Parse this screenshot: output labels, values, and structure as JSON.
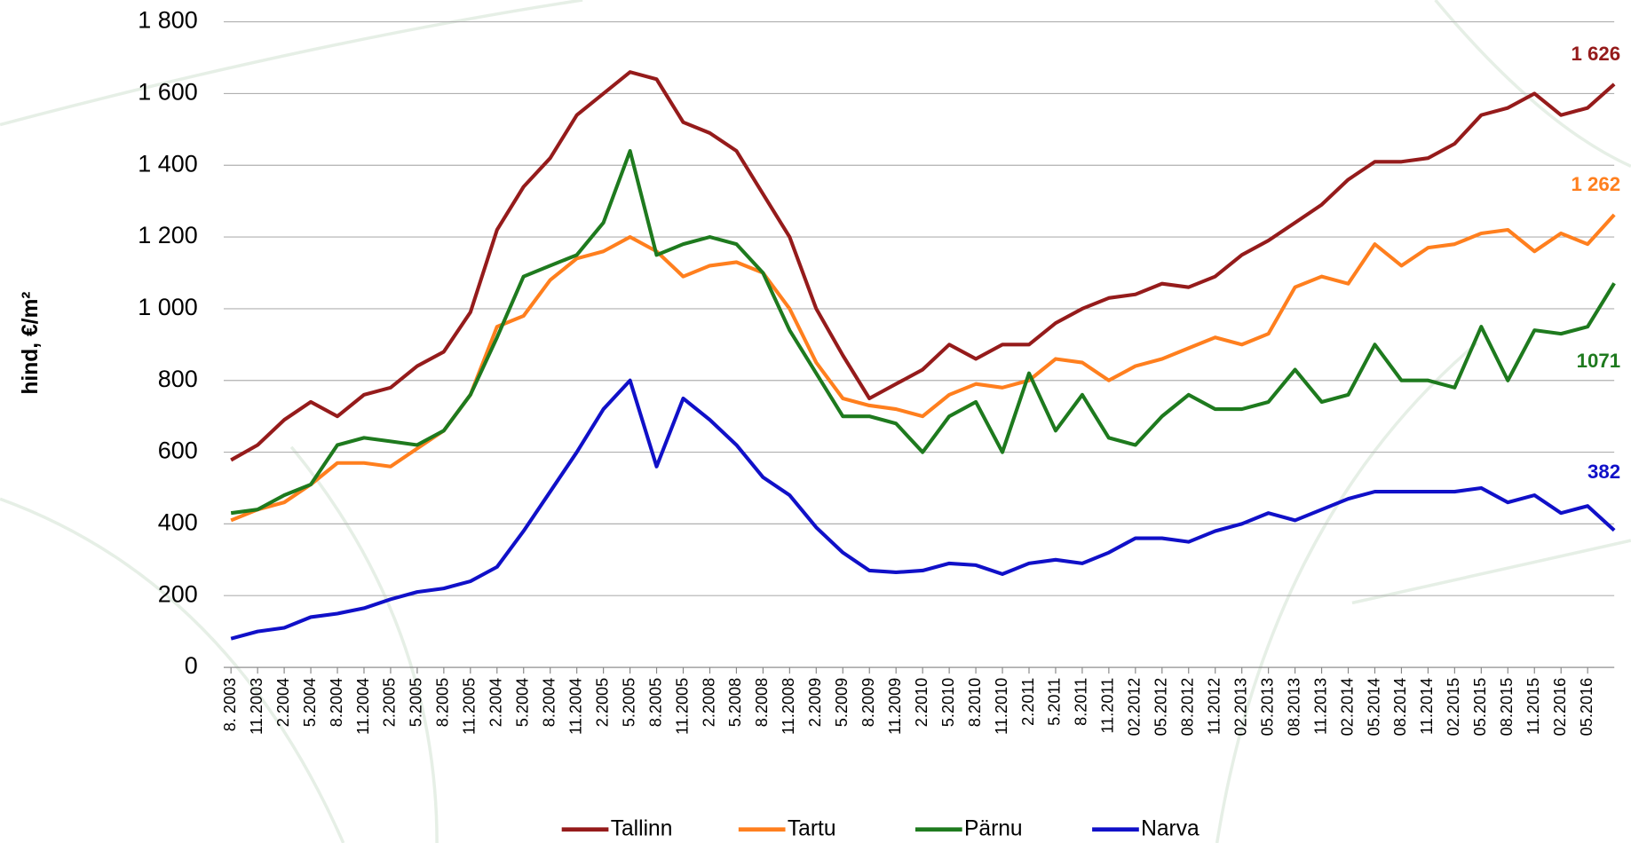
{
  "chart_data": {
    "type": "line",
    "y_label": "hind, €/m²",
    "categories": [
      "8. 2003",
      "11.2003",
      "2.2004",
      "5.2004",
      "8.2004",
      "11.2004",
      "2.2005",
      "5.2005",
      "8.2005",
      "11.2005",
      "2.2004",
      "5.2004",
      "8.2004",
      "11.2004",
      "2.2005",
      "5.2005",
      "8.2005",
      "11.2005",
      "2.2008",
      "5.2008",
      "8.2008",
      "11.2008",
      "2.2009",
      "5.2009",
      "8.2009",
      "11.2009",
      "2.2010",
      "5.2010",
      "8.2010",
      "11.2010",
      "2.2011",
      "5.2011",
      "8.2011",
      "11.2011",
      "02.2012",
      "05.2012",
      "08.2012",
      "11.2012",
      "02.2013",
      "05.2013",
      "08.2013",
      "11.2013",
      "02.2014",
      "05.2014",
      "08.2014",
      "11.2014",
      "02.2015",
      "05.2015",
      "08.2015",
      "11.2015",
      "02.2016",
      "05.2016",
      null
    ],
    "ylim": [
      0,
      1800
    ],
    "yticks": [
      0,
      200,
      400,
      600,
      800,
      {
        "value": 1000,
        "label": "1 000"
      },
      {
        "value": 1200,
        "label": "1 200"
      },
      {
        "value": 1400,
        "label": "1 400"
      },
      {
        "value": 1600,
        "label": "1 600"
      },
      {
        "value": 1800,
        "label": "1 800"
      }
    ],
    "grid": true,
    "legend": "bottom",
    "series": [
      {
        "name": "Tallinn",
        "color": "#951b1b",
        "values": [
          578,
          620,
          690,
          740,
          700,
          760,
          780,
          840,
          880,
          990,
          1220,
          1340,
          1420,
          1540,
          1600,
          1660,
          1640,
          1520,
          1490,
          1440,
          1320,
          1200,
          1000,
          870,
          750,
          790,
          830,
          900,
          860,
          900,
          900,
          960,
          1000,
          1030,
          1040,
          1070,
          1060,
          1090,
          1150,
          1190,
          1240,
          1290,
          1360,
          1410,
          1410,
          1420,
          1460,
          1540,
          1560,
          1600,
          1540,
          1560,
          1626
        ],
        "value_labels": [
          null,
          null,
          null,
          null,
          null,
          null,
          null,
          null,
          null,
          null,
          null,
          null,
          null,
          null,
          null,
          null,
          null,
          null,
          null,
          null,
          null,
          null,
          null,
          null,
          null,
          null,
          null,
          null,
          null,
          null,
          null,
          null,
          null,
          null,
          null,
          null,
          null,
          null,
          null,
          null,
          null,
          null,
          null,
          null,
          null,
          null,
          null,
          null,
          null,
          null,
          null,
          null,
          "1 626"
        ]
      },
      {
        "name": "Tartu",
        "color": "#ff7f1e",
        "values": [
          410,
          440,
          460,
          510,
          570,
          570,
          560,
          610,
          660,
          760,
          950,
          980,
          1080,
          1140,
          1160,
          1200,
          1160,
          1090,
          1120,
          1130,
          1100,
          1000,
          850,
          750,
          730,
          720,
          700,
          760,
          790,
          780,
          800,
          860,
          850,
          800,
          840,
          860,
          890,
          920,
          900,
          930,
          1060,
          1090,
          1070,
          1180,
          1120,
          1170,
          1180,
          1210,
          1220,
          1160,
          1210,
          1180,
          1262
        ],
        "value_labels": [
          null,
          null,
          null,
          null,
          null,
          null,
          null,
          null,
          null,
          null,
          null,
          null,
          null,
          null,
          null,
          null,
          null,
          null,
          null,
          null,
          null,
          null,
          null,
          null,
          null,
          null,
          null,
          null,
          null,
          null,
          null,
          null,
          null,
          null,
          null,
          null,
          null,
          null,
          null,
          null,
          null,
          null,
          null,
          null,
          null,
          null,
          null,
          null,
          null,
          null,
          null,
          null,
          "1 262"
        ]
      },
      {
        "name": "Pärnu",
        "color": "#1e7a1e",
        "values": [
          430,
          440,
          480,
          510,
          620,
          640,
          630,
          620,
          660,
          760,
          920,
          1090,
          1120,
          1150,
          1240,
          1440,
          1150,
          1180,
          1200,
          1180,
          1100,
          940,
          820,
          700,
          700,
          680,
          600,
          700,
          740,
          600,
          820,
          660,
          760,
          640,
          620,
          700,
          760,
          720,
          720,
          740,
          830,
          740,
          760,
          900,
          800,
          800,
          780,
          950,
          800,
          940,
          930,
          950,
          1071
        ]
      },
      {
        "name": "Narva",
        "color": "#1010c8",
        "values": [
          80,
          100,
          110,
          140,
          150,
          165,
          190,
          210,
          220,
          240,
          280,
          380,
          490,
          600,
          720,
          800,
          560,
          750,
          690,
          620,
          530,
          480,
          390,
          320,
          270,
          265,
          270,
          290,
          285,
          260,
          290,
          300,
          290,
          320,
          360,
          360,
          350,
          380,
          400,
          430,
          410,
          440,
          470,
          490,
          490,
          490,
          490,
          500,
          460,
          480,
          430,
          450,
          382
        ]
      }
    ]
  }
}
